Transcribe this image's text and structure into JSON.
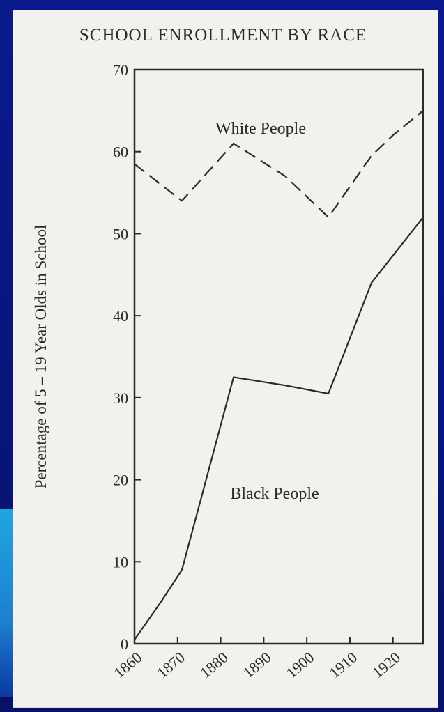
{
  "chart_data": {
    "type": "line",
    "title": "SCHOOL ENROLLMENT BY RACE",
    "ylabel": "Percentage of 5 – 19 Year Olds in School",
    "xlabel": "",
    "xlim": [
      1860,
      1927
    ],
    "ylim": [
      0,
      70
    ],
    "x_ticks": [
      1860,
      1870,
      1880,
      1890,
      1900,
      1910,
      1920
    ],
    "x_tick_labels": [
      "1860",
      "1870",
      "1880",
      "1890",
      "1900",
      "1910",
      "1920"
    ],
    "y_ticks": [
      0,
      10,
      20,
      30,
      40,
      50,
      60,
      70
    ],
    "y_tick_labels": [
      "0",
      "10",
      "20",
      "30",
      "40",
      "50",
      "60",
      "70"
    ],
    "grid": false,
    "series": [
      {
        "name": "White People",
        "line_style": "dashed",
        "x": [
          1860,
          1871,
          1883,
          1895,
          1905,
          1915,
          1920,
          1927
        ],
        "values": [
          58.5,
          54,
          61,
          57,
          52,
          59.5,
          62,
          65
        ]
      },
      {
        "name": "Black People",
        "line_style": "solid",
        "x": [
          1860,
          1866,
          1871,
          1883,
          1895,
          1905,
          1915,
          1927
        ],
        "values": [
          0.5,
          5,
          9,
          32.5,
          31.5,
          30.5,
          44,
          52
        ]
      }
    ]
  },
  "colors": {
    "slide_background": "#0a1a8c",
    "slide_accent": "#1fa6e0",
    "paper": "#f2f1ee",
    "ink": "#2a2a2a"
  }
}
